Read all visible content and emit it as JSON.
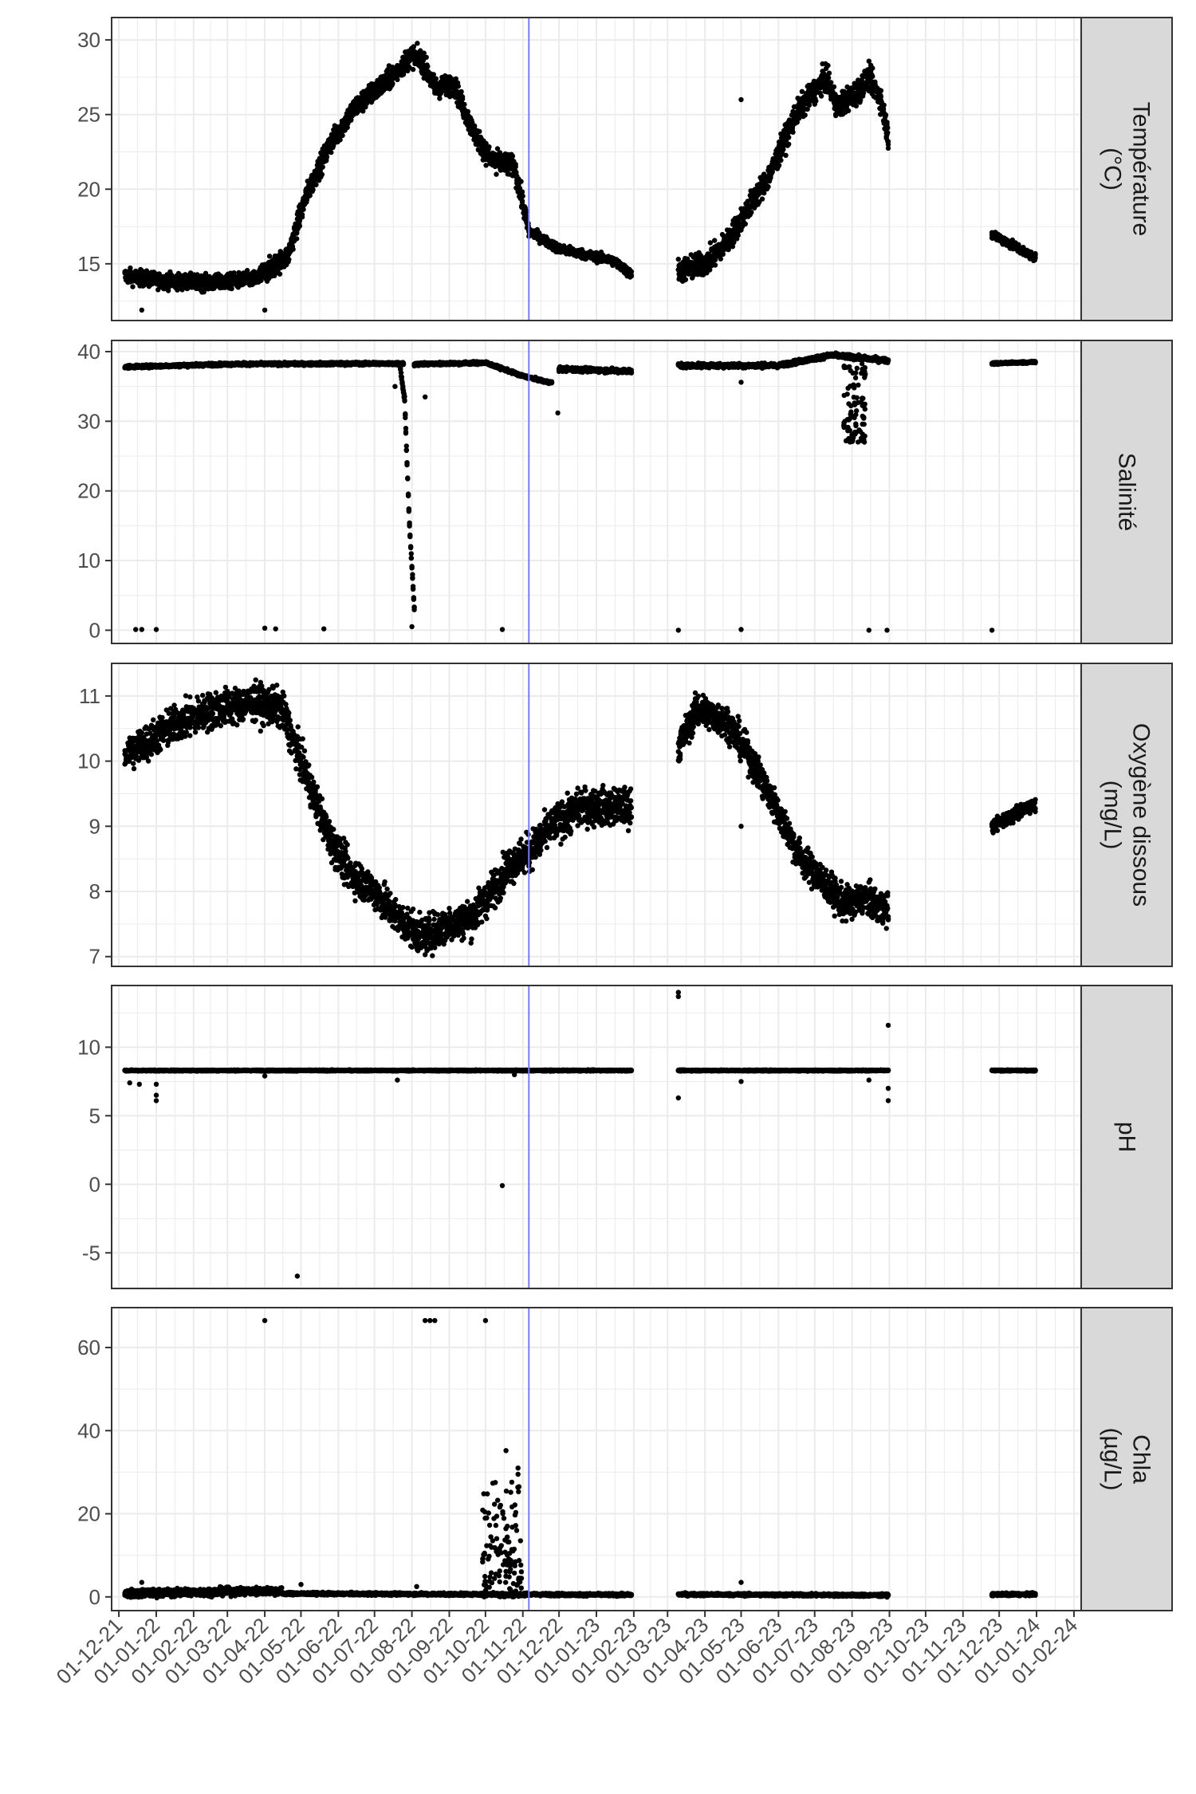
{
  "chart_data": {
    "type": "scatter",
    "facet_layout": "vertical",
    "shared_x": true,
    "x_scale": {
      "type": "date",
      "format": "DD-MM-YY",
      "lim": [
        "2021-11-25",
        "2024-02-07"
      ],
      "tick_labels": [
        "01-12-21",
        "01-01-22",
        "01-02-22",
        "01-03-22",
        "01-04-22",
        "01-05-22",
        "01-06-22",
        "01-07-22",
        "01-08-22",
        "01-09-22",
        "01-10-22",
        "01-11-22",
        "01-12-22",
        "01-01-23",
        "01-02-23",
        "01-03-23",
        "01-04-23",
        "01-05-23",
        "01-06-23",
        "01-07-23",
        "01-08-23",
        "01-09-23",
        "01-10-23",
        "01-11-23",
        "01-12-23",
        "01-01-24",
        "01-02-24"
      ],
      "tick_label_rotation": 45
    },
    "reference_line": {
      "axis": "x",
      "value": "2022-11-06",
      "color": "#7b7bf0"
    },
    "point_color": "#000000",
    "grid": true,
    "panels": [
      {
        "strip_lines": [
          "Température",
          "(°C)"
        ],
        "ylim": [
          11.2,
          31.5
        ],
        "yticks": [
          15,
          20,
          25,
          30
        ],
        "segments": [
          {
            "start": "2021-12-06",
            "end": "2022-03-25",
            "anchors": [
              [
                "2021-12-06",
                14.2
              ],
              [
                "2022-01-01",
                13.9
              ],
              [
                "2022-02-15",
                13.7
              ],
              [
                "2022-03-25",
                14.0
              ]
            ],
            "noise": 0.5
          },
          {
            "start": "2022-03-25",
            "end": "2022-11-06",
            "anchors": [
              [
                "2022-03-25",
                14.0
              ],
              [
                "2022-04-20",
                15.5
              ],
              [
                "2022-05-05",
                19.5
              ],
              [
                "2022-05-25",
                23.0
              ],
              [
                "2022-06-15",
                25.5
              ],
              [
                "2022-07-15",
                27.5
              ],
              [
                "2022-08-01",
                29.0
              ],
              [
                "2022-08-10",
                28.5
              ],
              [
                "2022-08-20",
                26.8
              ],
              [
                "2022-09-05",
                27.0
              ],
              [
                "2022-09-20",
                24.0
              ],
              [
                "2022-10-05",
                22.0
              ],
              [
                "2022-10-25",
                21.5
              ],
              [
                "2022-11-06",
                17.2
              ]
            ],
            "noise": 0.7
          },
          {
            "start": "2022-11-06",
            "end": "2023-01-30",
            "anchors": [
              [
                "2022-11-06",
                17.2
              ],
              [
                "2022-12-01",
                16.0
              ],
              [
                "2023-01-15",
                15.2
              ],
              [
                "2023-01-30",
                14.3
              ]
            ],
            "noise": 0.3
          },
          {
            "start": "2023-03-10",
            "end": "2023-08-31",
            "anchors": [
              [
                "2023-03-10",
                14.5
              ],
              [
                "2023-04-01",
                15.0
              ],
              [
                "2023-04-20",
                16.5
              ],
              [
                "2023-05-05",
                18.5
              ],
              [
                "2023-05-25",
                21.0
              ],
              [
                "2023-06-15",
                25.0
              ],
              [
                "2023-07-10",
                27.5
              ],
              [
                "2023-07-20",
                25.5
              ],
              [
                "2023-08-05",
                26.5
              ],
              [
                "2023-08-15",
                27.5
              ],
              [
                "2023-08-25",
                26.0
              ],
              [
                "2023-08-31",
                23.5
              ]
            ],
            "noise": 0.8
          },
          {
            "start": "2023-11-25",
            "end": "2023-12-31",
            "anchors": [
              [
                "2023-11-25",
                17.0
              ],
              [
                "2023-12-31",
                15.4
              ]
            ],
            "noise": 0.3
          }
        ],
        "outliers": [
          [
            "2021-12-20",
            11.9
          ],
          [
            "2022-04-01",
            11.9
          ],
          [
            "2022-10-10",
            21.0
          ],
          [
            "2023-05-01",
            26.0
          ]
        ]
      },
      {
        "strip_lines": [
          "Salinité"
        ],
        "ylim": [
          -1.9,
          41.6
        ],
        "yticks": [
          0,
          10,
          20,
          30,
          40
        ],
        "segments": [
          {
            "start": "2021-12-06",
            "end": "2022-07-25",
            "anchors": [
              [
                "2021-12-06",
                37.8
              ],
              [
                "2022-03-01",
                38.2
              ],
              [
                "2022-07-25",
                38.3
              ]
            ],
            "noise": 0.2
          },
          {
            "start": "2022-07-22",
            "end": "2022-08-03",
            "anchors": [
              [
                "2022-07-22",
                38.0
              ],
              [
                "2022-07-26",
                33.0
              ],
              [
                "2022-07-30",
                15.0
              ],
              [
                "2022-08-03",
                3.0
              ]
            ],
            "noise": 0.4
          },
          {
            "start": "2022-08-03",
            "end": "2022-11-25",
            "anchors": [
              [
                "2022-08-03",
                38.2
              ],
              [
                "2022-10-01",
                38.4
              ],
              [
                "2022-11-01",
                36.5
              ],
              [
                "2022-11-25",
                35.5
              ]
            ],
            "noise": 0.2
          },
          {
            "start": "2022-12-01",
            "end": "2023-01-30",
            "anchors": [
              [
                "2022-12-01",
                37.5
              ],
              [
                "2023-01-30",
                37.2
              ]
            ],
            "noise": 0.3
          },
          {
            "start": "2023-03-10",
            "end": "2023-08-31",
            "anchors": [
              [
                "2023-03-10",
                38.0
              ],
              [
                "2023-06-01",
                38.0
              ],
              [
                "2023-07-15",
                39.5
              ],
              [
                "2023-08-31",
                38.7
              ]
            ],
            "noise": 0.3
          },
          {
            "start": "2023-11-25",
            "end": "2023-12-31",
            "anchors": [
              [
                "2023-11-25",
                38.3
              ],
              [
                "2023-12-31",
                38.5
              ]
            ],
            "noise": 0.15
          }
        ],
        "outliers": [
          [
            "2021-12-15",
            0.1
          ],
          [
            "2021-12-20",
            0.1
          ],
          [
            "2022-01-01",
            0.1
          ],
          [
            "2022-04-01",
            0.3
          ],
          [
            "2022-04-10",
            0.2
          ],
          [
            "2022-05-20",
            0.2
          ],
          [
            "2022-08-01",
            0.5
          ],
          [
            "2022-10-15",
            0.1
          ],
          [
            "2023-03-10",
            0.0
          ],
          [
            "2023-05-01",
            0.1
          ],
          [
            "2023-08-15",
            0.0
          ],
          [
            "2023-08-30",
            0.0
          ],
          [
            "2023-11-25",
            0.0
          ],
          [
            "2022-08-12",
            33.5
          ],
          [
            "2022-11-30",
            31.2
          ],
          [
            "2022-07-18",
            35.0
          ],
          [
            "2023-05-01",
            35.6
          ]
        ],
        "scatter_bands": [
          {
            "start": "2023-07-25",
            "end": "2023-08-12",
            "ymin": 27.0,
            "ymax": 39.5,
            "count": 90
          }
        ]
      },
      {
        "strip_lines": [
          "Oxygène dissous",
          "(mg/L)"
        ],
        "ylim": [
          6.85,
          11.5
        ],
        "yticks": [
          7,
          8,
          9,
          10,
          11
        ],
        "segments": [
          {
            "start": "2021-12-06",
            "end": "2023-01-30",
            "anchors": [
              [
                "2021-12-06",
                10.1
              ],
              [
                "2021-12-25",
                10.3
              ],
              [
                "2022-01-20",
                10.6
              ],
              [
                "2022-02-20",
                10.8
              ],
              [
                "2022-03-25",
                10.9
              ],
              [
                "2022-04-15",
                10.8
              ],
              [
                "2022-05-05",
                9.8
              ],
              [
                "2022-05-25",
                8.8
              ],
              [
                "2022-06-10",
                8.3
              ],
              [
                "2022-07-01",
                8.0
              ],
              [
                "2022-07-20",
                7.6
              ],
              [
                "2022-08-10",
                7.3
              ],
              [
                "2022-09-01",
                7.5
              ],
              [
                "2022-09-20",
                7.6
              ],
              [
                "2022-10-10",
                8.1
              ],
              [
                "2022-10-20",
                8.4
              ],
              [
                "2022-11-06",
                8.6
              ],
              [
                "2022-11-25",
                9.0
              ],
              [
                "2022-12-20",
                9.3
              ],
              [
                "2023-01-30",
                9.3
              ]
            ],
            "noise": 0.28
          },
          {
            "start": "2023-03-10",
            "end": "2023-08-31",
            "anchors": [
              [
                "2023-03-10",
                10.2
              ],
              [
                "2023-03-25",
                10.8
              ],
              [
                "2023-04-20",
                10.6
              ],
              [
                "2023-05-10",
                10.0
              ],
              [
                "2023-06-01",
                9.2
              ],
              [
                "2023-06-20",
                8.5
              ],
              [
                "2023-07-10",
                8.1
              ],
              [
                "2023-07-25",
                7.8
              ],
              [
                "2023-08-10",
                7.9
              ],
              [
                "2023-08-31",
                7.7
              ]
            ],
            "noise": 0.25
          },
          {
            "start": "2023-11-25",
            "end": "2023-12-31",
            "anchors": [
              [
                "2023-11-25",
                9.0
              ],
              [
                "2023-12-31",
                9.35
              ]
            ],
            "noise": 0.1
          }
        ],
        "outliers": [
          [
            "2023-05-01",
            9.0
          ]
        ]
      },
      {
        "strip_lines": [
          "pH"
        ],
        "ylim": [
          -7.6,
          14.5
        ],
        "yticks": [
          -5,
          0,
          5,
          10
        ],
        "segments": [
          {
            "start": "2021-12-06",
            "end": "2023-01-30",
            "anchors": [
              [
                "2021-12-06",
                8.3
              ],
              [
                "2023-01-30",
                8.3
              ]
            ],
            "noise": 0.04
          },
          {
            "start": "2023-03-10",
            "end": "2023-08-31",
            "anchors": [
              [
                "2023-03-10",
                8.3
              ],
              [
                "2023-08-31",
                8.3
              ]
            ],
            "noise": 0.04
          },
          {
            "start": "2023-11-25",
            "end": "2023-12-31",
            "anchors": [
              [
                "2023-11-25",
                8.3
              ],
              [
                "2023-12-31",
                8.3
              ]
            ],
            "noise": 0.04
          }
        ],
        "outliers": [
          [
            "2021-12-10",
            7.4
          ],
          [
            "2021-12-18",
            7.3
          ],
          [
            "2022-01-01",
            6.1
          ],
          [
            "2022-01-01",
            6.5
          ],
          [
            "2022-01-01",
            7.3
          ],
          [
            "2022-04-01",
            7.9
          ],
          [
            "2022-04-28",
            -6.7
          ],
          [
            "2022-07-20",
            7.6
          ],
          [
            "2022-10-15",
            -0.1
          ],
          [
            "2022-10-25",
            8.0
          ],
          [
            "2023-03-10",
            13.7
          ],
          [
            "2023-03-10",
            14.0
          ],
          [
            "2023-03-10",
            6.3
          ],
          [
            "2023-05-01",
            7.5
          ],
          [
            "2023-08-15",
            7.6
          ],
          [
            "2023-08-31",
            11.6
          ],
          [
            "2023-08-31",
            6.1
          ],
          [
            "2023-08-31",
            7.0
          ]
        ]
      },
      {
        "strip_lines": [
          "Chla",
          "(µg/L)"
        ],
        "ylim": [
          -3.3,
          69.6
        ],
        "yticks": [
          0,
          20,
          40,
          60
        ],
        "segments": [
          {
            "start": "2021-12-06",
            "end": "2022-04-15",
            "anchors": [
              [
                "2021-12-06",
                0.8
              ],
              [
                "2022-04-15",
                1.5
              ]
            ],
            "noise": 0.9
          },
          {
            "start": "2022-04-15",
            "end": "2023-01-30",
            "anchors": [
              [
                "2022-04-15",
                0.8
              ],
              [
                "2023-01-30",
                0.5
              ]
            ],
            "noise": 0.3
          },
          {
            "start": "2023-03-10",
            "end": "2023-08-31",
            "anchors": [
              [
                "2023-03-10",
                0.6
              ],
              [
                "2023-08-31",
                0.4
              ]
            ],
            "noise": 0.3
          },
          {
            "start": "2023-11-25",
            "end": "2023-12-31",
            "anchors": [
              [
                "2023-11-25",
                0.6
              ],
              [
                "2023-12-31",
                0.6
              ]
            ],
            "noise": 0.3
          }
        ],
        "outliers": [
          [
            "2022-04-01",
            66.5
          ],
          [
            "2022-08-12",
            66.5
          ],
          [
            "2022-08-16",
            66.5
          ],
          [
            "2022-08-20",
            66.5
          ],
          [
            "2022-10-01",
            66.5
          ],
          [
            "2022-10-18",
            35.2
          ],
          [
            "2022-10-28",
            31.0
          ],
          [
            "2022-10-28",
            29.5
          ],
          [
            "2021-12-20",
            3.5
          ],
          [
            "2022-05-01",
            3.0
          ],
          [
            "2023-05-01",
            3.5
          ],
          [
            "2022-08-05",
            2.5
          ]
        ],
        "scatter_bands": [
          {
            "start": "2022-09-28",
            "end": "2022-10-31",
            "ymin": 0.0,
            "ymax": 28.0,
            "count": 140
          }
        ]
      }
    ]
  }
}
